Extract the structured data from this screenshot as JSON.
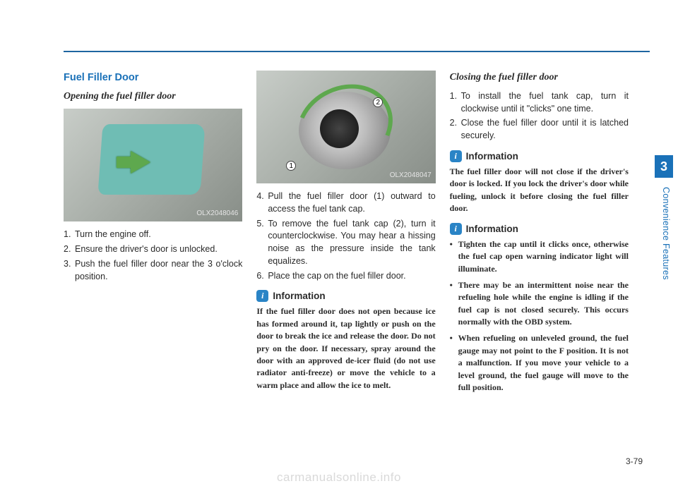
{
  "colors": {
    "accent": "#1a71b8",
    "rule": "#1e65a0",
    "text": "#2a2a2a",
    "watermark": "#d9d9d9"
  },
  "ruleTop": 72,
  "section": {
    "title": "Fuel Filler Door"
  },
  "col1": {
    "subheading": "Opening the fuel filler door",
    "imageCode": "OLX2048046",
    "steps": [
      "Turn the engine off.",
      "Ensure the driver's door is unlocked.",
      "Push the fuel filler door near the 3 o'clock position."
    ]
  },
  "col2": {
    "imageCode": "OLX2048047",
    "steps": [
      "Pull the fuel filler door (1) outward to access the fuel tank cap.",
      "To remove the fuel tank cap (2), turn it counterclockwise. You may hear a hissing noise as the pressure inside the tank equalizes.",
      "Place the cap on the fuel filler door."
    ],
    "stepStart": 4,
    "infoLabel": "Information",
    "infoBody": "If the fuel filler door does not open because ice has formed around it, tap lightly or push on the door to break the ice and release the door. Do not pry on the door. If necessary, spray around the door with an approved de-icer fluid (do not use radiator anti-freeze) or move the vehicle to a warm place and allow the ice to melt."
  },
  "col3": {
    "subheading": "Closing the fuel filler door",
    "steps": [
      "To install the fuel tank cap, turn it clockwise until it \"clicks\" one time.",
      "Close the fuel filler door until it is latched securely."
    ],
    "info1Label": "Information",
    "info1Body": "The fuel filler door will not close if the driver's door is locked. If you lock the driver's door while fueling, unlock it before closing the fuel filler door.",
    "info2Label": "Information",
    "info2Bullets": [
      "Tighten the cap until it clicks once, otherwise the fuel cap open warning indicator light will illuminate.",
      "There may be an intermittent noise near the refueling hole while the engine is idling if the fuel cap is not closed securely. This occurs normally with the OBD system.",
      "When refueling on unleveled ground, the fuel gauge may not point to the F position. It is not a malfunction. If you move your vehicle to a level ground, the fuel gauge will move to the full position."
    ]
  },
  "side": {
    "tab": "3",
    "label": "Convenience Features"
  },
  "pageNum": "3-79",
  "watermark": "carmanualsonline.info"
}
